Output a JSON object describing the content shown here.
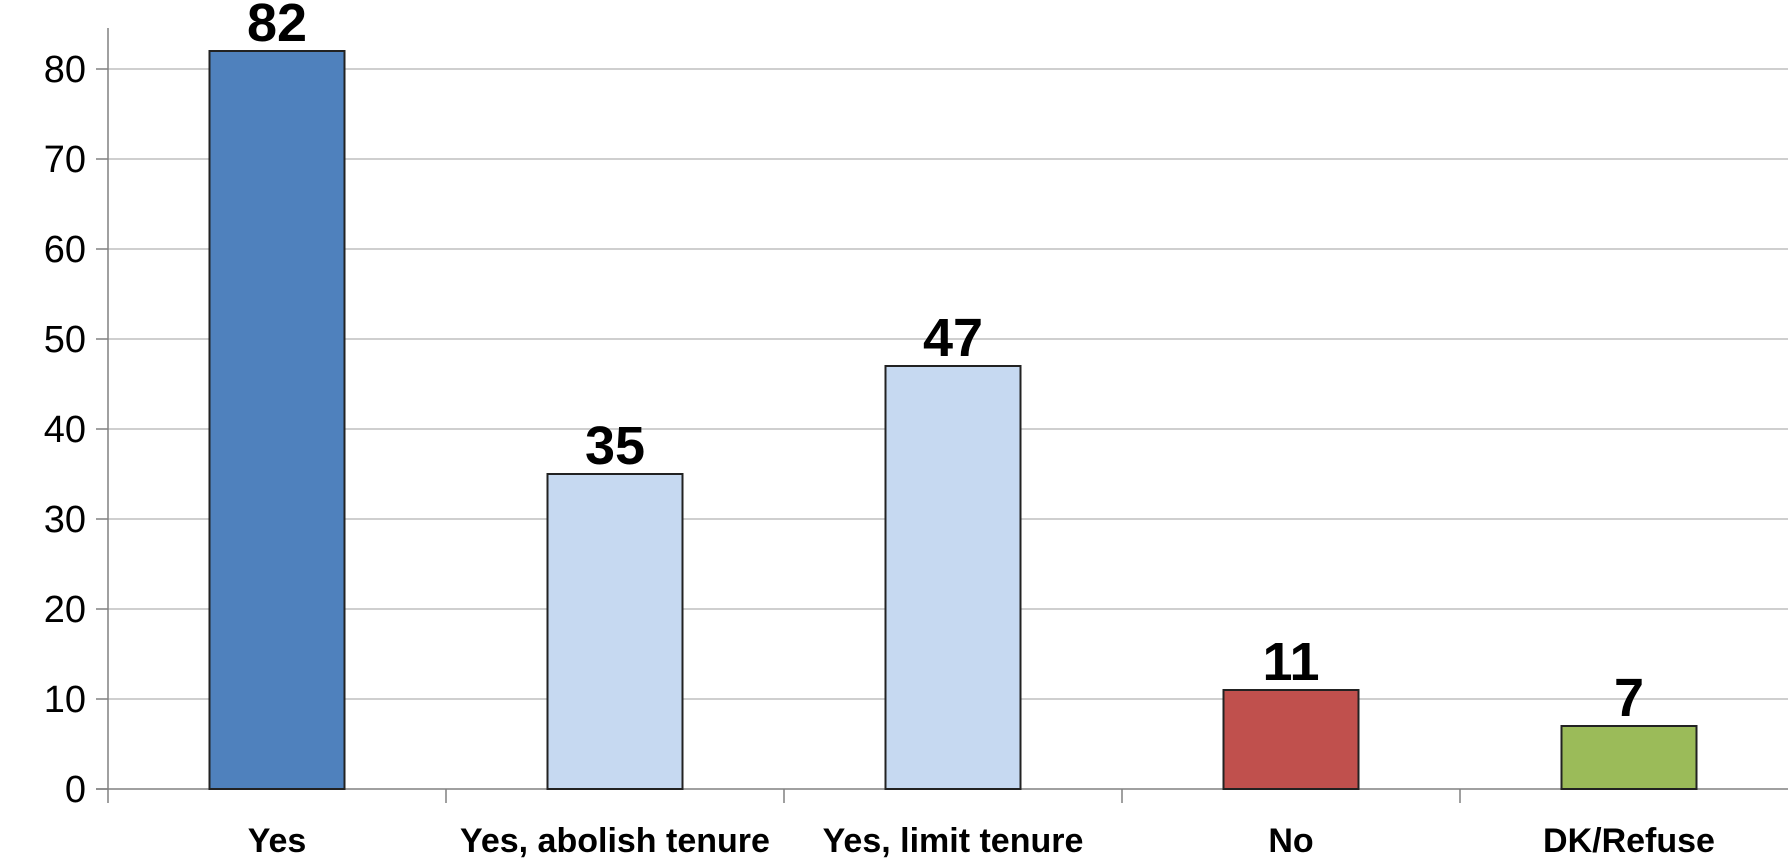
{
  "chart_data": {
    "type": "bar",
    "categories": [
      "Yes",
      "Yes, abolish tenure",
      "Yes, limit tenure",
      "No",
      "DK/Refuse"
    ],
    "values": [
      82,
      35,
      47,
      11,
      7
    ],
    "colors": [
      "#4F81BD",
      "#C6D9F1",
      "#C6D9F1",
      "#C0504D",
      "#9BBB59"
    ],
    "data_labels": [
      "82",
      "35",
      "47",
      "11",
      "7"
    ],
    "title": "",
    "xlabel": "",
    "ylabel": "",
    "ylim": [
      0,
      85
    ],
    "yticks": [
      0,
      10,
      20,
      30,
      40,
      50,
      60,
      70,
      80
    ],
    "grid": true,
    "legend": "none"
  },
  "colors": {
    "gridline": "#BFBFBF",
    "axis": "#808080",
    "bar_outline": "#222222"
  }
}
